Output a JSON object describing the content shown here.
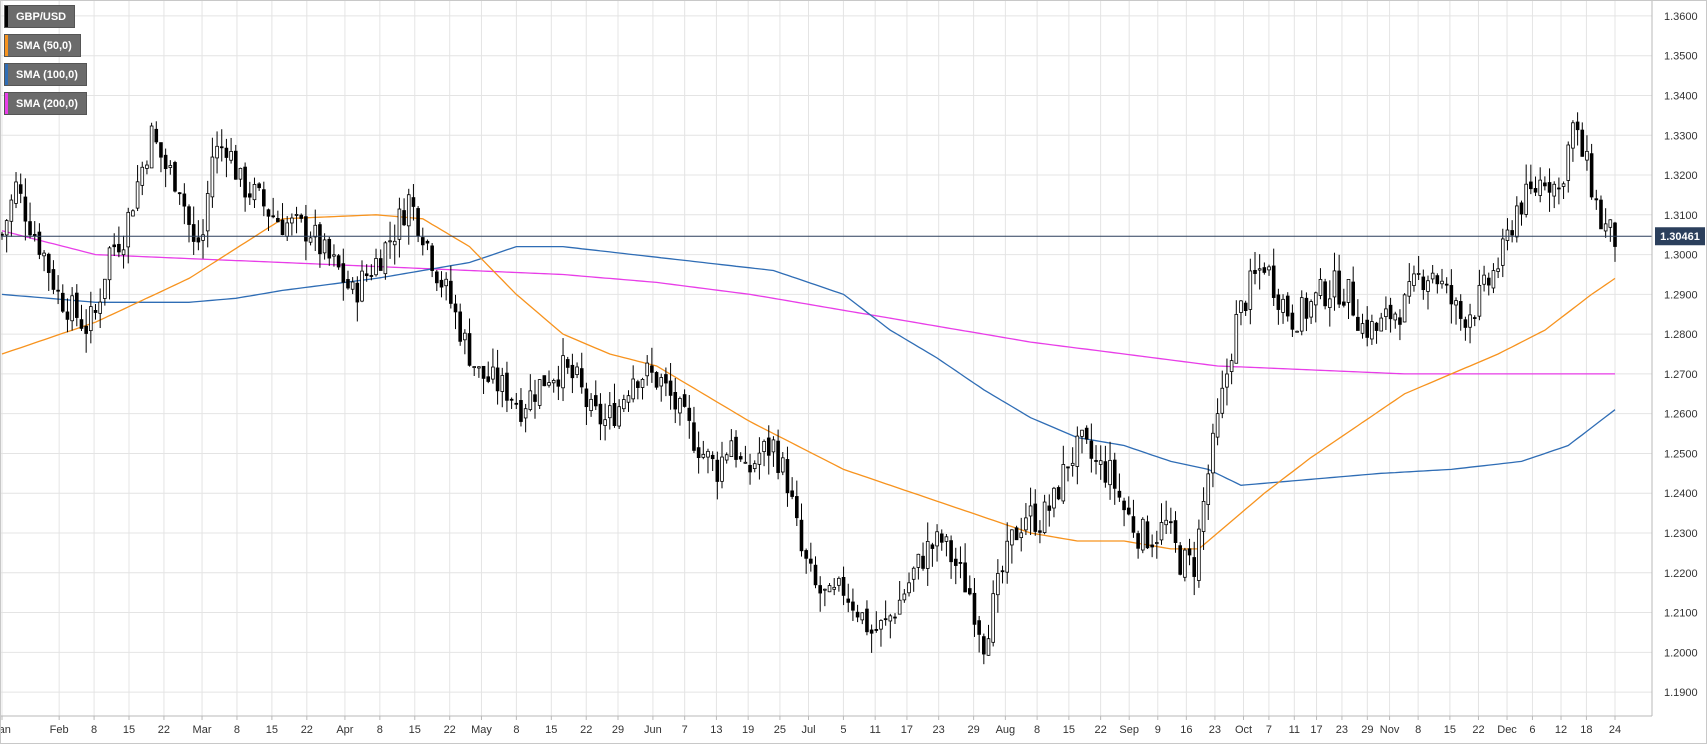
{
  "chart_data": {
    "type": "candlestick",
    "symbol": "GBP/USD",
    "last_price_label": "1.30461",
    "last_price": 1.30461,
    "ylim": [
      1.185,
      1.363
    ],
    "y_ticks": [
      "1.3600",
      "1.3500",
      "1.3400",
      "1.3300",
      "1.3200",
      "1.3100",
      "1.3000",
      "1.2900",
      "1.2800",
      "1.2700",
      "1.2600",
      "1.2500",
      "1.2400",
      "1.2300",
      "1.2200",
      "1.2100",
      "1.2000",
      "1.1900"
    ],
    "x_ticks": [
      "Jan",
      "Feb",
      "8",
      "15",
      "22",
      "Mar",
      "8",
      "15",
      "22",
      "Apr",
      "8",
      "15",
      "22",
      "May",
      "8",
      "15",
      "22",
      "29",
      "Jun",
      "7",
      "13",
      "19",
      "25",
      "Jul",
      "5",
      "11",
      "17",
      "23",
      "29",
      "Aug",
      "8",
      "15",
      "22",
      "Sep",
      "9",
      "16",
      "23",
      "Oct",
      "7",
      "11",
      "17",
      "23",
      "29",
      "Nov",
      "8",
      "15",
      "22",
      "Dec",
      "6",
      "12",
      "18",
      "24"
    ],
    "grid": true,
    "colors": {
      "up_candle": "#ffffff",
      "down_candle": "#000000",
      "candle_border": "#000000",
      "last_price_line": "#2b3f5c",
      "last_price_badge": "#2b3f5c",
      "sma50": "#f7931e",
      "sma100": "#2f6db5",
      "sma200": "#e83ee8"
    },
    "legend": [
      {
        "label": "GBP/USD",
        "color": "#000000"
      },
      {
        "label": "SMA (50,0)",
        "color": "#f7931e"
      },
      {
        "label": "SMA (100,0)",
        "color": "#2f6db5"
      },
      {
        "label": "SMA (200,0)",
        "color": "#e83ee8"
      }
    ],
    "price_anchors": [
      [
        0,
        1.305
      ],
      [
        3,
        1.317
      ],
      [
        6,
        1.308
      ],
      [
        9,
        1.3
      ],
      [
        12,
        1.29
      ],
      [
        15,
        1.286
      ],
      [
        18,
        1.282
      ],
      [
        20,
        1.285
      ],
      [
        23,
        1.301
      ],
      [
        26,
        1.305
      ],
      [
        29,
        1.318
      ],
      [
        32,
        1.33
      ],
      [
        35,
        1.322
      ],
      [
        38,
        1.318
      ],
      [
        41,
        1.302
      ],
      [
        43,
        1.305
      ],
      [
        45,
        1.325
      ],
      [
        48,
        1.328
      ],
      [
        51,
        1.318
      ],
      [
        54,
        1.315
      ],
      [
        57,
        1.311
      ],
      [
        60,
        1.308
      ],
      [
        63,
        1.307
      ],
      [
        66,
        1.306
      ],
      [
        69,
        1.3
      ],
      [
        72,
        1.296
      ],
      [
        75,
        1.29
      ],
      [
        78,
        1.295
      ],
      [
        81,
        1.3
      ],
      [
        84,
        1.306
      ],
      [
        87,
        1.314
      ],
      [
        90,
        1.306
      ],
      [
        93,
        1.296
      ],
      [
        96,
        1.288
      ],
      [
        99,
        1.278
      ],
      [
        102,
        1.27
      ],
      [
        105,
        1.268
      ],
      [
        108,
        1.266
      ],
      [
        111,
        1.262
      ],
      [
        114,
        1.266
      ],
      [
        117,
        1.27
      ],
      [
        120,
        1.271
      ],
      [
        123,
        1.268
      ],
      [
        126,
        1.26
      ],
      [
        129,
        1.258
      ],
      [
        132,
        1.262
      ],
      [
        135,
        1.27
      ],
      [
        138,
        1.27
      ],
      [
        141,
        1.268
      ],
      [
        144,
        1.262
      ],
      [
        147,
        1.256
      ],
      [
        150,
        1.25
      ],
      [
        153,
        1.246
      ],
      [
        156,
        1.254
      ],
      [
        159,
        1.244
      ],
      [
        162,
        1.25
      ],
      [
        165,
        1.252
      ],
      [
        168,
        1.243
      ],
      [
        171,
        1.225
      ],
      [
        174,
        1.216
      ],
      [
        177,
        1.213
      ],
      [
        180,
        1.216
      ],
      [
        183,
        1.211
      ],
      [
        186,
        1.205
      ],
      [
        189,
        1.207
      ],
      [
        192,
        1.213
      ],
      [
        195,
        1.22
      ],
      [
        198,
        1.226
      ],
      [
        201,
        1.228
      ],
      [
        204,
        1.222
      ],
      [
        207,
        1.215
      ],
      [
        210,
        1.203
      ],
      [
        213,
        1.216
      ],
      [
        216,
        1.228
      ],
      [
        219,
        1.235
      ],
      [
        222,
        1.233
      ],
      [
        225,
        1.238
      ],
      [
        228,
        1.248
      ],
      [
        231,
        1.252
      ],
      [
        234,
        1.247
      ],
      [
        237,
        1.245
      ],
      [
        240,
        1.236
      ],
      [
        243,
        1.23
      ],
      [
        246,
        1.229
      ],
      [
        249,
        1.232
      ],
      [
        252,
        1.223
      ],
      [
        255,
        1.222
      ],
      [
        258,
        1.245
      ],
      [
        261,
        1.264
      ],
      [
        264,
        1.283
      ],
      [
        267,
        1.292
      ],
      [
        270,
        1.298
      ],
      [
        273,
        1.29
      ],
      [
        276,
        1.284
      ],
      [
        279,
        1.286
      ],
      [
        282,
        1.29
      ],
      [
        285,
        1.292
      ],
      [
        288,
        1.29
      ],
      [
        291,
        1.282
      ],
      [
        294,
        1.281
      ],
      [
        297,
        1.285
      ],
      [
        300,
        1.287
      ],
      [
        303,
        1.294
      ],
      [
        306,
        1.296
      ],
      [
        309,
        1.29
      ],
      [
        312,
        1.284
      ],
      [
        315,
        1.287
      ],
      [
        318,
        1.293
      ],
      [
        321,
        1.3
      ],
      [
        324,
        1.312
      ],
      [
        327,
        1.315
      ],
      [
        330,
        1.32
      ],
      [
        333,
        1.316
      ],
      [
        336,
        1.332
      ],
      [
        339,
        1.322
      ],
      [
        342,
        1.308
      ],
      [
        345,
        1.304
      ]
    ],
    "sma50_anchors": [
      [
        0,
        1.275
      ],
      [
        20,
        1.283
      ],
      [
        40,
        1.294
      ],
      [
        60,
        1.309
      ],
      [
        80,
        1.31
      ],
      [
        90,
        1.309
      ],
      [
        100,
        1.302
      ],
      [
        110,
        1.29
      ],
      [
        120,
        1.28
      ],
      [
        130,
        1.275
      ],
      [
        140,
        1.272
      ],
      [
        150,
        1.265
      ],
      [
        160,
        1.258
      ],
      [
        170,
        1.252
      ],
      [
        180,
        1.246
      ],
      [
        190,
        1.242
      ],
      [
        200,
        1.238
      ],
      [
        210,
        1.234
      ],
      [
        220,
        1.23
      ],
      [
        230,
        1.228
      ],
      [
        240,
        1.228
      ],
      [
        250,
        1.226
      ],
      [
        256,
        1.226
      ],
      [
        262,
        1.232
      ],
      [
        270,
        1.24
      ],
      [
        280,
        1.249
      ],
      [
        290,
        1.257
      ],
      [
        300,
        1.265
      ],
      [
        310,
        1.27
      ],
      [
        320,
        1.275
      ],
      [
        330,
        1.281
      ],
      [
        340,
        1.29
      ],
      [
        345,
        1.294
      ]
    ],
    "sma100_anchors": [
      [
        0,
        1.29
      ],
      [
        10,
        1.289
      ],
      [
        20,
        1.288
      ],
      [
        40,
        1.288
      ],
      [
        50,
        1.289
      ],
      [
        60,
        1.291
      ],
      [
        80,
        1.294
      ],
      [
        100,
        1.298
      ],
      [
        110,
        1.302
      ],
      [
        120,
        1.302
      ],
      [
        135,
        1.3
      ],
      [
        150,
        1.298
      ],
      [
        165,
        1.296
      ],
      [
        180,
        1.29
      ],
      [
        190,
        1.281
      ],
      [
        200,
        1.274
      ],
      [
        210,
        1.266
      ],
      [
        220,
        1.259
      ],
      [
        230,
        1.254
      ],
      [
        240,
        1.252
      ],
      [
        250,
        1.248
      ],
      [
        258,
        1.246
      ],
      [
        265,
        1.242
      ],
      [
        275,
        1.243
      ],
      [
        285,
        1.244
      ],
      [
        295,
        1.245
      ],
      [
        310,
        1.246
      ],
      [
        325,
        1.248
      ],
      [
        335,
        1.252
      ],
      [
        345,
        1.261
      ]
    ],
    "sma200_anchors": [
      [
        0,
        1.306
      ],
      [
        10,
        1.303
      ],
      [
        20,
        1.3
      ],
      [
        40,
        1.299
      ],
      [
        60,
        1.298
      ],
      [
        80,
        1.297
      ],
      [
        100,
        1.296
      ],
      [
        120,
        1.295
      ],
      [
        140,
        1.293
      ],
      [
        160,
        1.29
      ],
      [
        180,
        1.286
      ],
      [
        200,
        1.282
      ],
      [
        220,
        1.278
      ],
      [
        240,
        1.275
      ],
      [
        260,
        1.272
      ],
      [
        280,
        1.271
      ],
      [
        300,
        1.27
      ],
      [
        320,
        1.27
      ],
      [
        340,
        1.27
      ],
      [
        345,
        1.27
      ]
    ]
  }
}
